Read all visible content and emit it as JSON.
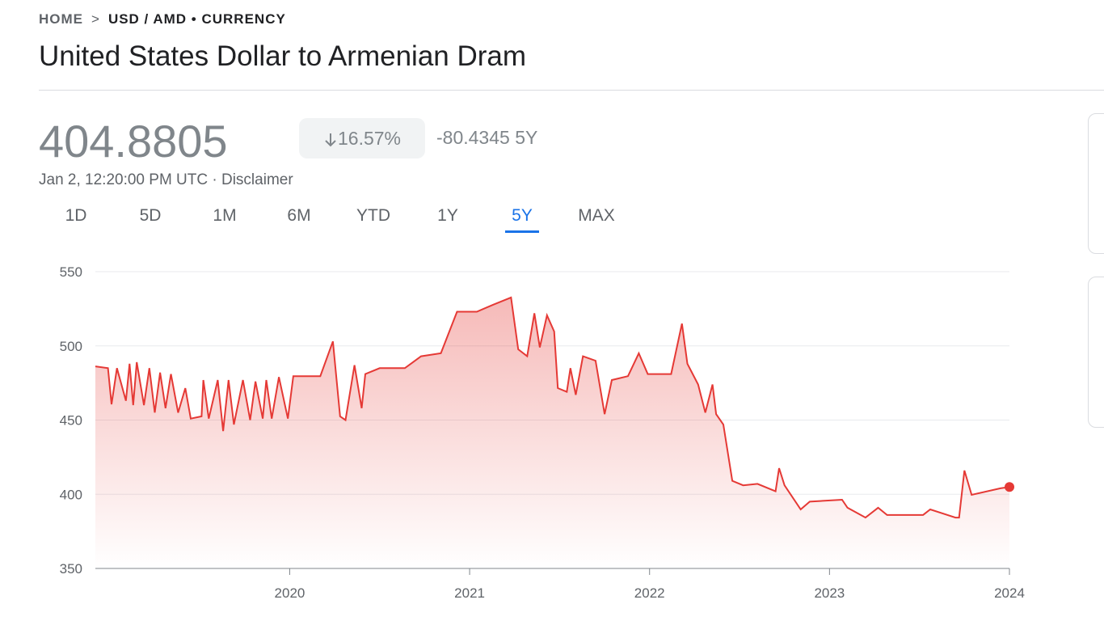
{
  "header": {
    "breadcrumb": [
      "HOME",
      "USD / AMD • CURRENCY"
    ],
    "title": "United States Dollar to Armenian Dram"
  },
  "quote": {
    "price": "404.8805",
    "change_percent": "16.57%",
    "change": "-80.4345 5Y",
    "timestamp": "Jan 2, 12:20:00 PM UTC · Disclaimer"
  },
  "tabs": [
    "1D",
    "5D",
    "1M",
    "6M",
    "YTD",
    "1Y",
    "5Y",
    "MAX"
  ],
  "chart_data": {
    "type": "line",
    "x": [
      2018.92,
      2018.99,
      2019.01,
      2019.04,
      2019.09,
      2019.11,
      2019.13,
      2019.15,
      2019.19,
      2019.22,
      2019.25,
      2019.28,
      2019.31,
      2019.34,
      2019.38,
      2019.42,
      2019.45,
      2019.51,
      2019.52,
      2019.55,
      2019.6,
      2019.63,
      2019.66,
      2019.69,
      2019.74,
      2019.78,
      2019.81,
      2019.85,
      2019.87,
      2019.9,
      2019.94,
      2019.99,
      2020.02,
      2020.17,
      2020.24,
      2020.28,
      2020.31,
      2020.36,
      2020.4,
      2020.42,
      2020.5,
      2020.64,
      2020.73,
      2020.84,
      2020.93,
      2021.04,
      2021.13,
      2021.23,
      2021.27,
      2021.32,
      2021.36,
      2021.39,
      2021.43,
      2021.47,
      2021.49,
      2021.54,
      2021.56,
      2021.59,
      2021.63,
      2021.7,
      2021.75,
      2021.79,
      2021.88,
      2021.94,
      2021.99,
      2022.12,
      2022.18,
      2022.21,
      2022.27,
      2022.31,
      2022.35,
      2022.37,
      2022.41,
      2022.46,
      2022.52,
      2022.6,
      2022.7,
      2022.72,
      2022.75,
      2022.84,
      2022.89,
      2023.07,
      2023.1,
      2023.2,
      2023.27,
      2023.32,
      2023.52,
      2023.56,
      2023.7,
      2023.72,
      2023.75,
      2023.79,
      2023.95,
      2024.0
    ],
    "series": [
      {
        "name": "USD / AMD",
        "color": "#e53935",
        "values": [
          486.2,
          485,
          460.6,
          485,
          463,
          488,
          460,
          489,
          460,
          485,
          455,
          482,
          458,
          481,
          455,
          471.5,
          451,
          452.5,
          477,
          451,
          477,
          442.6,
          477,
          447,
          477,
          450,
          476,
          451,
          477,
          451,
          479,
          451,
          479.6,
          479.6,
          503,
          452.5,
          450,
          487,
          458,
          481,
          485,
          485,
          493,
          495,
          523,
          523,
          527.7,
          532.6,
          497.7,
          493,
          522,
          499,
          520.6,
          509.7,
          471.5,
          469,
          485,
          467,
          493,
          490,
          454,
          477,
          479.6,
          495,
          481,
          481,
          515,
          488,
          474,
          455,
          474,
          454,
          447,
          409,
          406,
          407,
          402,
          417.6,
          406,
          389.8,
          395,
          396.3,
          390.9,
          384.3,
          390.9,
          386,
          386,
          389.8,
          384.3,
          384.3,
          416,
          399.6,
          404,
          404.9
        ]
      }
    ],
    "xlim": [
      2018.92,
      2024.0
    ],
    "xticks": [
      2020,
      2021,
      2022,
      2023,
      2024
    ],
    "ylim": [
      350,
      550
    ],
    "yticks": [
      350,
      400,
      450,
      500,
      550
    ],
    "grid": true
  }
}
